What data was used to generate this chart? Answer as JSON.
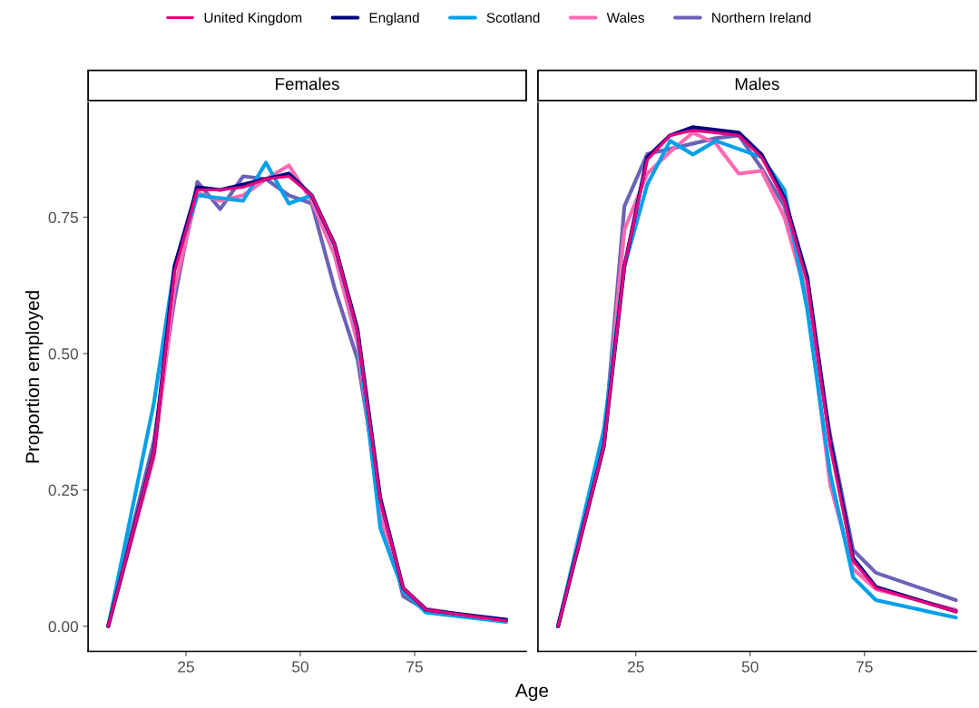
{
  "chart_data": [
    {
      "type": "line",
      "title": "Females",
      "xlabel": "Age",
      "ylabel": "Proportion employed",
      "legend": "top",
      "grid": false,
      "xlim": [
        3.6,
        99.4
      ],
      "xticks": [
        25,
        50,
        75
      ],
      "ylim": [
        -0.046,
        0.96
      ],
      "yticks": [
        {
          "value": 0,
          "label": "0.00"
        },
        {
          "value": 0.25,
          "label": "0.25"
        },
        {
          "value": 0.5,
          "label": "0.50"
        },
        {
          "value": 0.75,
          "label": "0.75"
        }
      ],
      "x": [
        8,
        18,
        22.5,
        27.5,
        32.5,
        37.5,
        42.5,
        47.5,
        52.5,
        57.5,
        62.5,
        67.5,
        72.5,
        77.5,
        95
      ],
      "series": [
        {
          "name": "United Kingdom",
          "color": "#e6007e",
          "values": [
            0,
            0.32,
            0.65,
            0.8,
            0.8,
            0.805,
            0.82,
            0.825,
            0.79,
            0.7,
            0.54,
            0.23,
            0.07,
            0.03,
            0.01
          ]
        },
        {
          "name": "England",
          "color": "#000080",
          "values": [
            0,
            0.32,
            0.66,
            0.805,
            0.8,
            0.81,
            0.82,
            0.83,
            0.79,
            0.7,
            0.545,
            0.235,
            0.07,
            0.03,
            0.012
          ]
        },
        {
          "name": "Scotland",
          "color": "#00a0e9",
          "values": [
            0,
            0.41,
            0.66,
            0.79,
            0.785,
            0.78,
            0.85,
            0.775,
            0.79,
            0.7,
            0.54,
            0.18,
            0.065,
            0.025,
            0.008
          ]
        },
        {
          "name": "Wales",
          "color": "#ff69b4",
          "values": [
            0,
            0.31,
            0.62,
            0.795,
            0.78,
            0.79,
            0.82,
            0.845,
            0.78,
            0.68,
            0.52,
            0.2,
            0.07,
            0.032,
            0.008
          ]
        },
        {
          "name": "Northern Ireland",
          "color": "#6b63b5",
          "values": [
            0,
            0.34,
            0.6,
            0.815,
            0.765,
            0.825,
            0.82,
            0.79,
            0.775,
            0.62,
            0.49,
            0.23,
            0.055,
            0.03,
            0.01
          ]
        }
      ]
    },
    {
      "type": "line",
      "title": "Males",
      "tick_labels": "x",
      "grid": false,
      "xlim": [
        3.6,
        99.4
      ],
      "xticks": [
        25,
        50,
        75
      ],
      "ylim": [
        -0.046,
        0.96
      ],
      "yticks": [
        {
          "value": 0,
          "label": null
        },
        {
          "value": 0.25,
          "label": null
        },
        {
          "value": 0.5,
          "label": null
        },
        {
          "value": 0.75,
          "label": null
        }
      ],
      "x": [
        8,
        18,
        22.5,
        27.5,
        32.5,
        37.5,
        42.5,
        47.5,
        52.5,
        57.5,
        62.5,
        67.5,
        72.5,
        77.5,
        95
      ],
      "series": [
        {
          "name": "United Kingdom",
          "color": "#e6007e",
          "values": [
            0,
            0.33,
            0.66,
            0.855,
            0.9,
            0.909,
            0.905,
            0.9,
            0.86,
            0.78,
            0.63,
            0.33,
            0.12,
            0.07,
            0.027
          ]
        },
        {
          "name": "England",
          "color": "#000080",
          "values": [
            0,
            0.33,
            0.66,
            0.86,
            0.9,
            0.915,
            0.91,
            0.905,
            0.865,
            0.785,
            0.64,
            0.34,
            0.125,
            0.072,
            0.027
          ]
        },
        {
          "name": "Scotland",
          "color": "#00a0e9",
          "values": [
            0,
            0.36,
            0.66,
            0.81,
            0.89,
            0.865,
            0.89,
            0.875,
            0.86,
            0.8,
            0.58,
            0.28,
            0.09,
            0.048,
            0.016
          ]
        },
        {
          "name": "Wales",
          "color": "#ff69b4",
          "values": [
            0,
            0.33,
            0.727,
            0.83,
            0.87,
            0.905,
            0.885,
            0.83,
            0.835,
            0.75,
            0.6,
            0.26,
            0.105,
            0.068,
            0.03
          ]
        },
        {
          "name": "Northern Ireland",
          "color": "#6b63b5",
          "values": [
            0,
            0.33,
            0.77,
            0.866,
            0.875,
            0.885,
            0.895,
            0.9,
            0.84,
            0.77,
            0.6,
            0.35,
            0.14,
            0.098,
            0.048
          ]
        }
      ]
    }
  ]
}
